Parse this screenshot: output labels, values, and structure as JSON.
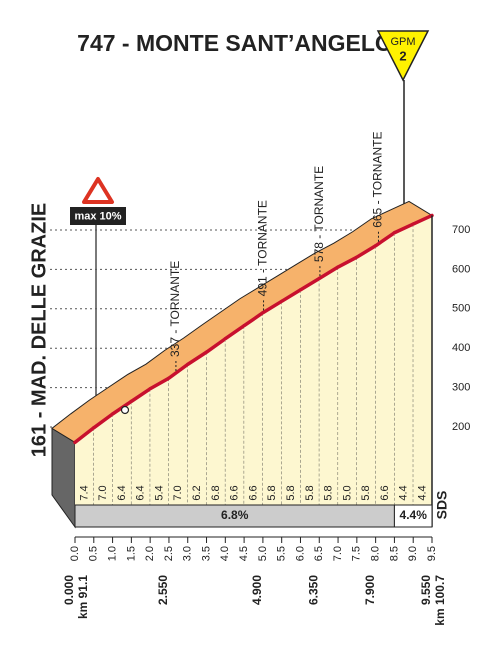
{
  "chart_data": {
    "type": "profile",
    "title": "747 - MONTE SANT’ANGELO",
    "gpm": {
      "label": "GPM",
      "category": "2"
    },
    "start": {
      "label": "161 - MAD. DELLE GRAZIE",
      "altitude": 161
    },
    "max_gradient": "max 10%",
    "annotations": [
      {
        "label": "337 - TORNANTE",
        "altitude": 337
      },
      {
        "label": "491 - TORNANTE",
        "altitude": 491
      },
      {
        "label": "578 - TORNANTE",
        "altitude": 578
      },
      {
        "label": "665 - TORNANTE",
        "altitude": 665
      }
    ],
    "ylim": [
      200,
      700
    ],
    "yticks": [
      200,
      300,
      400,
      500,
      600,
      700
    ],
    "xticks": [
      {
        "value": 0,
        "label": "0.0"
      },
      0.5,
      {
        "value": 1,
        "label": "1.0"
      },
      1.5,
      {
        "value": 2,
        "label": "2.0"
      },
      2.5,
      {
        "value": 3,
        "label": "3.0"
      },
      3.5,
      {
        "value": 4,
        "label": "4.0"
      },
      4.5,
      {
        "value": 5,
        "label": "5.0"
      },
      5.5,
      {
        "value": 6,
        "label": "6.0"
      },
      6.5,
      {
        "value": 7,
        "label": "7.0"
      },
      7.5,
      {
        "value": 8,
        "label": "8.0"
      },
      8.5,
      {
        "value": 9,
        "label": "9.0"
      },
      9.5
    ],
    "gradients": [
      7.4,
      7,
      6.4,
      6.4,
      5.4,
      7,
      6.2,
      6.8,
      6.6,
      6.6,
      5.8,
      5.8,
      5.8,
      5.8,
      5,
      5.8,
      6.6,
      4.4,
      4.4
    ],
    "value_labels": [
      "7.4",
      "7.0",
      "6.4",
      "6.4",
      "5.4",
      "7.0",
      "6.2",
      "6.8",
      "6.6",
      "6.6",
      "5.8",
      "5.8",
      "5.8",
      "5.8",
      "5.0",
      "5.8",
      "6.6",
      "4.4",
      "4.4"
    ],
    "averages": [
      {
        "value": 6.8,
        "label": "6.8%"
      },
      {
        "value": 4.4,
        "label": "4.4%"
      }
    ],
    "sponsor": "SDS",
    "distances": [
      "0.000",
      "2.550",
      "4.900",
      "6.350",
      "7.900",
      "9.550"
    ],
    "km_start": "km 91.1",
    "km_end": "km 100.7"
  }
}
